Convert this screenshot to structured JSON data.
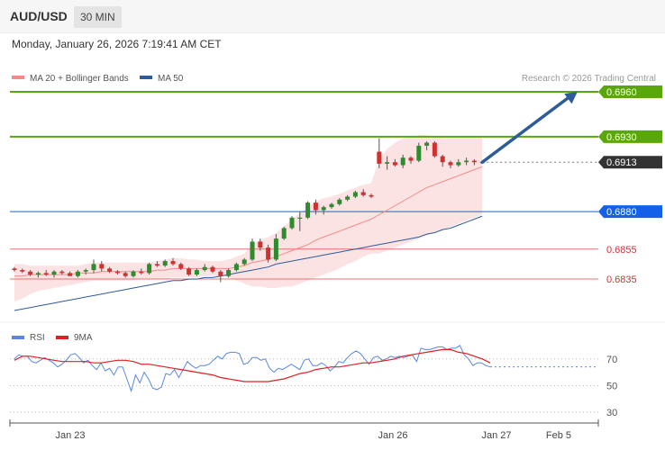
{
  "header": {
    "symbol": "AUD/USD",
    "timeframe": "30 MIN"
  },
  "datetime": "Monday, January 26, 2026 7:19:41 AM CET",
  "legend": [
    {
      "label": "MA 20 + Bollinger Bands",
      "color": "#f28a8a"
    },
    {
      "label": "MA 50",
      "color": "#2e5b99"
    }
  ],
  "watermark": "Research © 2026 Trading Central",
  "colors": {
    "support_green": "#5aa70a",
    "pivot_blue": "#1560e8",
    "resistance_red": "#e57373",
    "last_price_bg": "#333333",
    "candle_up": "#2e8b2e",
    "candle_down": "#d03030",
    "ma20": "#f28a8a",
    "ma50": "#2e5b99",
    "band_fill": "#fcdede",
    "arrow": "#2e5b99",
    "rsi": "#5b87e0",
    "rsi_ma": "#e02020"
  },
  "chart_data": [
    {
      "type": "candlestick",
      "x_labels": [
        "Jan 23",
        "Jan 26",
        "Jan 27",
        "Feb 5"
      ],
      "ylim": [
        0.6805,
        0.6972
      ],
      "levels": [
        {
          "value": 0.696,
          "label": "0.6960",
          "kind": "target"
        },
        {
          "value": 0.693,
          "label": "0.6930",
          "kind": "target"
        },
        {
          "value": 0.6913,
          "label": "0.6913",
          "kind": "last"
        },
        {
          "value": 0.688,
          "label": "0.6880",
          "kind": "pivot"
        },
        {
          "value": 0.6855,
          "label": "0.6855",
          "kind": "support"
        },
        {
          "value": 0.6835,
          "label": "0.6835",
          "kind": "support"
        }
      ],
      "candles": [
        [
          0.6842,
          0.6843,
          0.684,
          0.6841
        ],
        [
          0.6841,
          0.6842,
          0.6839,
          0.684
        ],
        [
          0.684,
          0.6841,
          0.6837,
          0.6838
        ],
        [
          0.6838,
          0.684,
          0.6836,
          0.6839
        ],
        [
          0.6839,
          0.6841,
          0.6837,
          0.6838
        ],
        [
          0.6838,
          0.6841,
          0.6836,
          0.684
        ],
        [
          0.684,
          0.6841,
          0.6838,
          0.6839
        ],
        [
          0.6839,
          0.684,
          0.6837,
          0.6837
        ],
        [
          0.6837,
          0.6841,
          0.6836,
          0.684
        ],
        [
          0.684,
          0.6842,
          0.6838,
          0.6841
        ],
        [
          0.6841,
          0.6848,
          0.6839,
          0.6845
        ],
        [
          0.6845,
          0.6847,
          0.684,
          0.6842
        ],
        [
          0.6842,
          0.6843,
          0.6839,
          0.684
        ],
        [
          0.684,
          0.6841,
          0.6838,
          0.6839
        ],
        [
          0.6839,
          0.684,
          0.6836,
          0.6837
        ],
        [
          0.6837,
          0.6841,
          0.6836,
          0.684
        ],
        [
          0.684,
          0.6842,
          0.6838,
          0.6839
        ],
        [
          0.6839,
          0.6846,
          0.6838,
          0.6845
        ],
        [
          0.6845,
          0.6847,
          0.6843,
          0.6844
        ],
        [
          0.6844,
          0.6848,
          0.6843,
          0.6847
        ],
        [
          0.6847,
          0.6849,
          0.6844,
          0.6845
        ],
        [
          0.6845,
          0.6846,
          0.6841,
          0.6842
        ],
        [
          0.6842,
          0.6843,
          0.6837,
          0.6838
        ],
        [
          0.6838,
          0.6842,
          0.6837,
          0.6841
        ],
        [
          0.6841,
          0.6845,
          0.684,
          0.6843
        ],
        [
          0.6843,
          0.6844,
          0.6839,
          0.684
        ],
        [
          0.684,
          0.6841,
          0.6833,
          0.6837
        ],
        [
          0.6837,
          0.6842,
          0.6836,
          0.6841
        ],
        [
          0.6841,
          0.6846,
          0.684,
          0.6845
        ],
        [
          0.6845,
          0.6849,
          0.6844,
          0.6848
        ],
        [
          0.6848,
          0.6862,
          0.6847,
          0.686
        ],
        [
          0.686,
          0.6862,
          0.6854,
          0.6856
        ],
        [
          0.6856,
          0.6858,
          0.6846,
          0.6848
        ],
        [
          0.6848,
          0.6865,
          0.6847,
          0.6862
        ],
        [
          0.6862,
          0.687,
          0.6861,
          0.6869
        ],
        [
          0.6869,
          0.6877,
          0.6868,
          0.6876
        ],
        [
          0.6876,
          0.688,
          0.6867,
          0.6876
        ],
        [
          0.6876,
          0.6887,
          0.6875,
          0.6886
        ],
        [
          0.6886,
          0.6888,
          0.6878,
          0.6881
        ],
        [
          0.6881,
          0.6884,
          0.6878,
          0.6883
        ],
        [
          0.6883,
          0.6886,
          0.6882,
          0.6885
        ],
        [
          0.6885,
          0.6889,
          0.6884,
          0.6888
        ],
        [
          0.6888,
          0.6891,
          0.6887,
          0.689
        ],
        [
          0.689,
          0.6894,
          0.6889,
          0.6893
        ],
        [
          0.6893,
          0.6895,
          0.689,
          0.6891
        ],
        [
          0.6891,
          0.6892,
          0.6889,
          0.689
        ],
        [
          0.692,
          0.6929,
          0.6909,
          0.6912
        ],
        [
          0.6912,
          0.6917,
          0.6908,
          0.6913
        ],
        [
          0.6913,
          0.6915,
          0.691,
          0.6911
        ],
        [
          0.6911,
          0.6918,
          0.6909,
          0.6916
        ],
        [
          0.6916,
          0.6917,
          0.6912,
          0.6914
        ],
        [
          0.6914,
          0.6926,
          0.6913,
          0.6924
        ],
        [
          0.6924,
          0.6927,
          0.6921,
          0.6926
        ],
        [
          0.6926,
          0.6927,
          0.6916,
          0.6917
        ],
        [
          0.6917,
          0.6918,
          0.691,
          0.6913
        ],
        [
          0.6913,
          0.6914,
          0.6909,
          0.6911
        ],
        [
          0.6911,
          0.6915,
          0.691,
          0.6913
        ],
        [
          0.6913,
          0.6916,
          0.6911,
          0.6914
        ],
        [
          0.6914,
          0.6915,
          0.6911,
          0.6913
        ],
        [
          0.6913,
          0.6914,
          0.6912,
          0.6913
        ]
      ],
      "ma20": [
        0.6837,
        0.6837,
        0.6838,
        0.6838,
        0.6838,
        0.6838,
        0.6838,
        0.6838,
        0.6839,
        0.6839,
        0.6839,
        0.684,
        0.684,
        0.684,
        0.684,
        0.684,
        0.684,
        0.684,
        0.6841,
        0.6841,
        0.6842,
        0.6842,
        0.6842,
        0.6842,
        0.6842,
        0.6842,
        0.6842,
        0.6842,
        0.6843,
        0.6844,
        0.6846,
        0.6847,
        0.6848,
        0.685,
        0.6852,
        0.6854,
        0.6856,
        0.6858,
        0.6861,
        0.6863,
        0.6865,
        0.6867,
        0.6869,
        0.6871,
        0.6873,
        0.6875,
        0.6878,
        0.6881,
        0.6884,
        0.6887,
        0.689,
        0.6893,
        0.6896,
        0.6898,
        0.69,
        0.6902,
        0.6904,
        0.6906,
        0.6908,
        0.691
      ],
      "ma50": [
        0.6814,
        0.6815,
        0.6816,
        0.6817,
        0.6818,
        0.6819,
        0.682,
        0.6821,
        0.6822,
        0.6823,
        0.6824,
        0.6825,
        0.6826,
        0.6827,
        0.6828,
        0.6829,
        0.683,
        0.6831,
        0.6832,
        0.6833,
        0.6834,
        0.6834,
        0.6835,
        0.6835,
        0.6836,
        0.6836,
        0.6837,
        0.6838,
        0.6839,
        0.684,
        0.6841,
        0.6842,
        0.6843,
        0.6845,
        0.6846,
        0.6847,
        0.6848,
        0.6849,
        0.685,
        0.6851,
        0.6852,
        0.6853,
        0.6854,
        0.6855,
        0.6856,
        0.6857,
        0.6858,
        0.6859,
        0.686,
        0.6861,
        0.6862,
        0.6863,
        0.6865,
        0.6866,
        0.6868,
        0.6869,
        0.6871,
        0.6873,
        0.6875,
        0.6877
      ],
      "band_upper": [
        0.6845,
        0.6845,
        0.6844,
        0.6844,
        0.6844,
        0.6844,
        0.6844,
        0.6844,
        0.6844,
        0.6845,
        0.6846,
        0.6846,
        0.6846,
        0.6846,
        0.6846,
        0.6846,
        0.6846,
        0.6846,
        0.6847,
        0.6848,
        0.6849,
        0.6849,
        0.6848,
        0.6848,
        0.6847,
        0.6847,
        0.6847,
        0.6848,
        0.685,
        0.6852,
        0.6858,
        0.6861,
        0.6863,
        0.6866,
        0.687,
        0.6875,
        0.6879,
        0.6883,
        0.6887,
        0.6889,
        0.689,
        0.6892,
        0.6894,
        0.6896,
        0.6898,
        0.6899,
        0.6915,
        0.6922,
        0.6926,
        0.6929,
        0.693,
        0.6931,
        0.6931,
        0.693,
        0.693,
        0.693,
        0.693,
        0.693,
        0.693,
        0.693
      ],
      "band_lower": [
        0.682,
        0.6822,
        0.6825,
        0.6827,
        0.6828,
        0.6829,
        0.683,
        0.6831,
        0.6832,
        0.6833,
        0.6834,
        0.6834,
        0.6834,
        0.6834,
        0.6834,
        0.6834,
        0.6835,
        0.6835,
        0.6835,
        0.6835,
        0.6836,
        0.6836,
        0.6836,
        0.6836,
        0.6837,
        0.6837,
        0.6837,
        0.6836,
        0.6834,
        0.6832,
        0.683,
        0.683,
        0.6829,
        0.6829,
        0.683,
        0.683,
        0.6832,
        0.6834,
        0.6836,
        0.6838,
        0.684,
        0.6842,
        0.6845,
        0.6847,
        0.685,
        0.6852,
        0.6852,
        0.6854,
        0.6856,
        0.6858,
        0.686,
        0.6862,
        0.6864,
        0.6866,
        0.6868,
        0.687,
        0.6872,
        0.6874,
        0.6876,
        0.6878
      ],
      "arrow": {
        "from": [
          59,
          0.6913
        ],
        "to": [
          71,
          0.696
        ]
      }
    },
    {
      "type": "line",
      "series_labels": [
        "RSI",
        "9MA"
      ],
      "ylim": [
        22,
        84
      ],
      "y_ticks": [
        70,
        50,
        30
      ],
      "rsi": [
        70,
        73,
        72,
        72,
        68,
        67,
        69,
        71,
        69,
        67,
        64,
        66,
        69,
        73,
        74,
        71,
        67,
        69,
        65,
        62,
        67,
        61,
        63,
        58,
        64,
        64,
        55,
        46,
        58,
        52,
        60,
        55,
        48,
        47,
        49,
        59,
        58,
        62,
        56,
        62,
        68,
        65,
        63,
        65,
        65,
        66,
        69,
        72,
        70,
        74,
        75,
        75,
        74,
        66,
        67,
        71,
        71,
        69,
        70,
        63,
        60,
        63,
        62,
        64,
        66,
        64,
        62,
        69,
        70,
        65,
        65,
        67,
        65,
        61,
        64,
        68,
        67,
        71,
        74,
        76,
        74,
        70,
        66,
        71,
        72,
        69,
        70,
        72,
        71,
        72,
        71,
        72,
        73,
        68,
        78,
        77,
        77,
        78,
        79,
        79,
        77,
        78,
        78,
        80,
        73,
        70,
        65,
        67,
        67,
        65,
        64
      ],
      "rsi_ma": [
        69,
        72,
        72,
        71,
        70,
        69,
        68,
        68,
        68,
        68,
        67,
        67,
        68,
        69,
        69,
        68,
        66,
        66,
        65,
        64,
        63,
        62,
        61,
        60,
        59,
        58,
        56,
        55,
        54,
        53,
        53,
        53,
        53,
        54,
        55,
        57,
        59,
        60,
        62,
        63,
        64,
        64,
        65,
        66,
        67,
        67,
        68,
        69,
        70,
        72,
        73,
        74,
        75,
        76,
        77,
        77,
        75,
        74,
        72,
        70,
        67
      ],
      "ma_start": 50
    }
  ]
}
